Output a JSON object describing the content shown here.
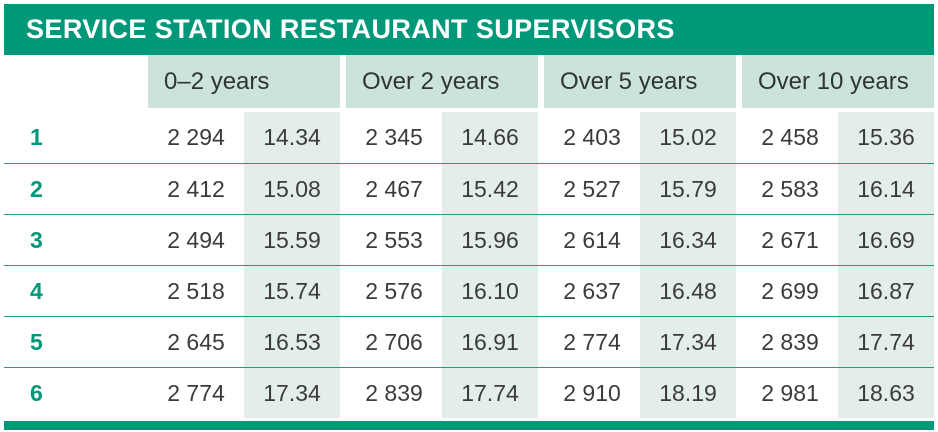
{
  "title": "SERVICE STATION RESTAURANT SUPERVISORS",
  "columns": [
    "0–2 years",
    "Over 2 years",
    "Over 5 years",
    "Over 10 years"
  ],
  "rows": [
    {
      "label": "1",
      "cells": [
        "2 294",
        "14.34",
        "2 345",
        "14.66",
        "2 403",
        "15.02",
        "2 458",
        "15.36"
      ]
    },
    {
      "label": "2",
      "cells": [
        "2 412",
        "15.08",
        "2 467",
        "15.42",
        "2 527",
        "15.79",
        "2 583",
        "16.14"
      ]
    },
    {
      "label": "3",
      "cells": [
        "2 494",
        "15.59",
        "2 553",
        "15.96",
        "2 614",
        "16.34",
        "2 671",
        "16.69"
      ]
    },
    {
      "label": "4",
      "cells": [
        "2 518",
        "15.74",
        "2 576",
        "16.10",
        "2 637",
        "16.48",
        "2 699",
        "16.87"
      ]
    },
    {
      "label": "5",
      "cells": [
        "2 645",
        "16.53",
        "2 706",
        "16.91",
        "2 774",
        "17.34",
        "2 839",
        "17.74"
      ]
    },
    {
      "label": "6",
      "cells": [
        "2 774",
        "17.34",
        "2 839",
        "17.74",
        "2 910",
        "18.19",
        "2 981",
        "18.63"
      ]
    }
  ],
  "colors": {
    "teal": "#009879",
    "header_tint": "#cbe3da",
    "body_tint": "#e3eee8",
    "text": "#3b3b3b",
    "separator": "#2a9a7d"
  }
}
